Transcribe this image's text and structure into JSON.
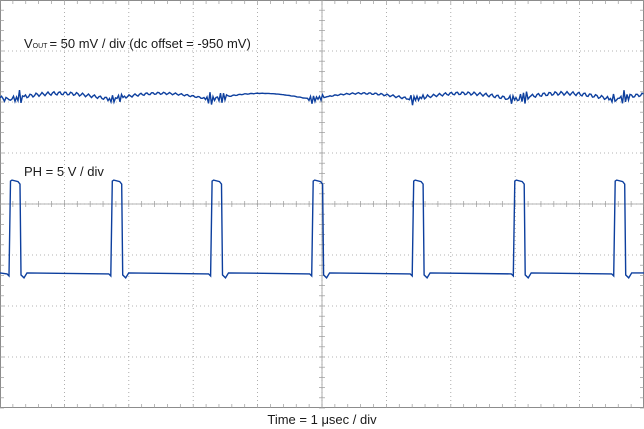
{
  "chart_data": {
    "type": "line",
    "title": "",
    "xlabel": "Time = 1 μsec / div",
    "ylabel": "",
    "grid": true,
    "divisions": {
      "horizontal": 10,
      "vertical": 8
    },
    "colors": {
      "trace": "#0d3f9e",
      "grid": "#9a9a9a"
    },
    "annotations": {
      "vout_symbol": "V",
      "vout_subscript": "OUT",
      "vout_scale": "= 50 mV / div (dc offset = -950 mV)",
      "ph_scale": "PH = 5 V / div"
    },
    "x": [
      0.0,
      0.98,
      1.98,
      2.98,
      3.98,
      4.98,
      5.98,
      6.98,
      7.98,
      8.98,
      9.98
    ],
    "series": [
      {
        "name": "",
        "kind": "switch-node",
        "units": "V",
        "low_level": 0,
        "high_level": 20,
        "pulse_start_div": [
          0.14,
          1.72,
          3.27,
          4.84,
          6.4,
          7.97,
          9.53
        ],
        "pulse_width_div": 0.17
      },
      {
        "name": "",
        "kind": "output-ripple",
        "units": "mV",
        "edge_level": -20,
        "mid_level": 0,
        "spike_amplitude": 15,
        "period_div": 1.56
      }
    ]
  }
}
